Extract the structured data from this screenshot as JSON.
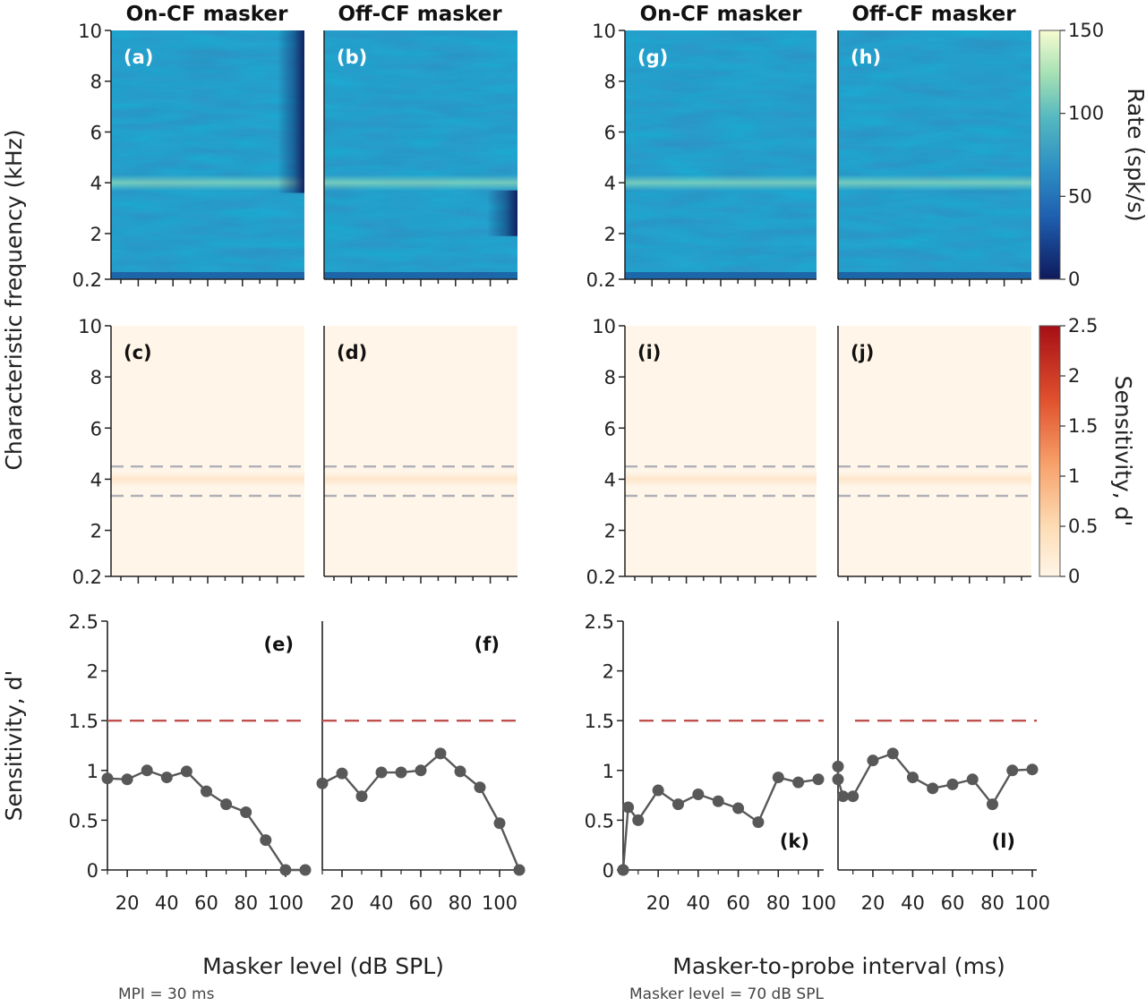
{
  "chart_data": [
    {
      "type": "heatmap",
      "column_titles": [
        "On-CF masker",
        "Off-CF masker",
        "On-CF masker",
        "Off-CF masker"
      ],
      "row1": {
        "panels": [
          "(a)",
          "(b)",
          "(g)",
          "(h)"
        ],
        "ylabel": "Characteristic frequency (kHz)",
        "yticks": [
          "0.2",
          "2",
          "4",
          "6",
          "8",
          "10"
        ],
        "colorbar": {
          "label": "Rate (spk/s)",
          "ticks": [
            "0",
            "50",
            "100",
            "150"
          ],
          "range": [
            0,
            150
          ],
          "colors": [
            "#0e1a5c",
            "#1f6fb8",
            "#3aa3c6",
            "#7fcfb0",
            "#f3fbc8"
          ]
        },
        "description_values": {
          "baseline_rate": 60,
          "cf_band_kHz": 4,
          "band_rate": 85
        }
      },
      "row2": {
        "panels": [
          "(c)",
          "(d)",
          "(i)",
          "(j)"
        ],
        "yticks": [
          "0.2",
          "2",
          "4",
          "6",
          "8",
          "10"
        ],
        "dashed_lines_kHz": [
          3.35,
          4.5
        ],
        "colorbar": {
          "label": "Sensitivity, d'",
          "ticks": [
            "0",
            "0.5",
            "1",
            "1.5",
            "2",
            "2.5"
          ],
          "range": [
            0,
            2.5
          ],
          "colors": [
            "#fff4e6",
            "#fdd0a2",
            "#f08a4b",
            "#d94a2a",
            "#a50f15"
          ]
        }
      }
    },
    {
      "type": "line",
      "title": "",
      "ylabel": "Sensitivity, d'",
      "ylim": [
        0,
        2.5
      ],
      "yticks": [
        "0",
        "0.5",
        "1",
        "1.5",
        "2",
        "2.5"
      ],
      "threshold": 1.5,
      "groups": [
        {
          "xlabel": "Masker level (dB SPL)",
          "note": "MPI = 30 ms",
          "xticks": [
            "20",
            "40",
            "60",
            "80",
            "100"
          ],
          "panels": [
            {
              "label": "(e)",
              "x": [
                10,
                20,
                30,
                40,
                50,
                60,
                70,
                80,
                90,
                100,
                110
              ],
              "y": [
                0.92,
                0.91,
                1.0,
                0.93,
                0.99,
                0.79,
                0.66,
                0.58,
                0.3,
                0.0,
                0.0
              ]
            },
            {
              "label": "(f)",
              "x": [
                10,
                20,
                30,
                40,
                50,
                60,
                70,
                80,
                90,
                100,
                110
              ],
              "y": [
                0.87,
                0.97,
                0.74,
                0.98,
                0.98,
                1.0,
                1.17,
                0.99,
                0.83,
                0.47,
                0.0
              ]
            }
          ]
        },
        {
          "xlabel": "Masker-to-probe interval (ms)",
          "note": "Masker level = 70 dB SPL",
          "xticks": [
            "20",
            "40",
            "60",
            "80",
            "100"
          ],
          "panels": [
            {
              "label": "(k)",
              "x": [
                0,
                2.5,
                5,
                10,
                20,
                30,
                40,
                50,
                60,
                70,
                80,
                90,
                100
              ],
              "y": [
                0.0,
                0.0,
                0.63,
                0.5,
                0.8,
                0.66,
                0.76,
                0.69,
                0.62,
                0.48,
                0.93,
                0.88,
                0.91
              ]
            },
            {
              "label": "(l)",
              "x": [
                0,
                2.5,
                5,
                10,
                20,
                30,
                40,
                50,
                60,
                70,
                80,
                90,
                100
              ],
              "y": [
                1.04,
                0.91,
                0.74,
                0.74,
                1.1,
                1.17,
                0.93,
                0.82,
                0.86,
                0.91,
                0.66,
                1.0,
                1.01
              ]
            }
          ]
        }
      ]
    }
  ]
}
